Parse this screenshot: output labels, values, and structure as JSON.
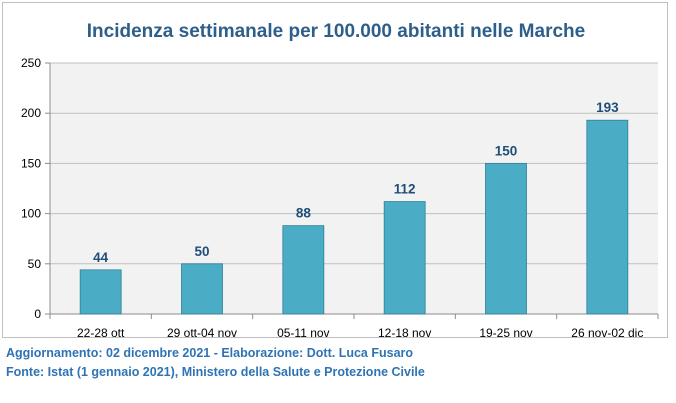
{
  "chart_data": {
    "type": "bar",
    "title": "Incidenza settimanale per 100.000 abitanti nelle Marche",
    "categories": [
      "22-28 ott",
      "29 ott-04 nov",
      "05-11 nov",
      "12-18 nov",
      "19-25 nov",
      "26 nov-02 dic"
    ],
    "values": [
      44,
      50,
      88,
      112,
      150,
      193
    ],
    "ylim": [
      0,
      250
    ],
    "yticks": [
      0,
      50,
      100,
      150,
      200,
      250
    ],
    "grid": true,
    "bar_color": "#4bacc6",
    "plot_background": "#f2f2f2",
    "data_label_color": "#1f4e79"
  },
  "footer": {
    "line1": "Aggiornamento: 02 dicembre 2021 - Elaborazione: Dott. Luca Fusaro",
    "line2": "Fonte: Istat (1 gennaio 2021), Ministero della Salute e Protezione Civile"
  }
}
